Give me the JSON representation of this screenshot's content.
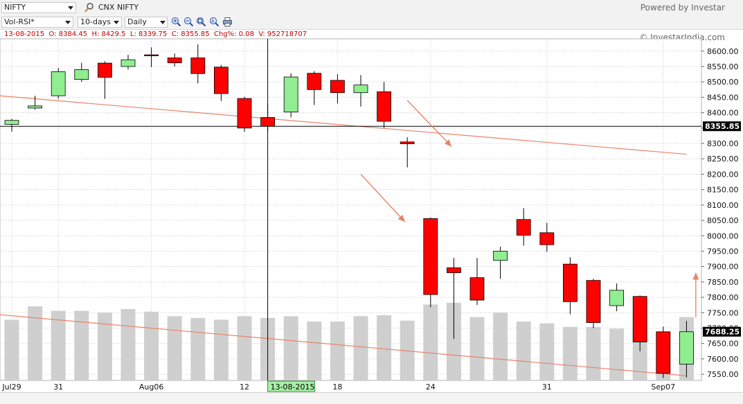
{
  "toolbar": {
    "symbol": "NIFTY",
    "symbol_name": "CNX NIFTY",
    "indicator": "Vol-RSI*",
    "period": "10-days",
    "interval": "Daily",
    "powered_by": "Powered by Investar",
    "copyright": "© InvestarIndia.com"
  },
  "ohlc_readout": {
    "date": "13-08-2015",
    "open": "O: 8384.45",
    "high": "H: 8429.5",
    "low": "L: 8339.75",
    "close": "C: 8355.85",
    "change": "Chg%: 0.08",
    "volume": "V: 952718707"
  },
  "colors": {
    "up": "#90ee90",
    "down": "#ff0000",
    "volume": "#cfcfcf",
    "trendline": "#e8826a",
    "grid": "#c8c8c8",
    "label_box": "#000000"
  },
  "chart_data": {
    "type": "candlestick",
    "title": "",
    "ylim": [
      7530,
      8640
    ],
    "yticks": [
      7550,
      7600,
      7650,
      7700,
      7750,
      7800,
      7850,
      7900,
      7950,
      8000,
      8050,
      8100,
      8150,
      8200,
      8250,
      8300,
      8350,
      8400,
      8450,
      8500,
      8550,
      8600
    ],
    "ytick_labels": [
      "7550.00",
      "7600.00",
      "7650.00",
      "7700.00",
      "7750.00",
      "7800.00",
      "7850.00",
      "7900.00",
      "7950.00",
      "8000.00",
      "8050.00",
      "8100.00",
      "8150.00",
      "8200.00",
      "8250.00",
      "8300.00",
      "8350.00",
      "8400.00",
      "8450.00",
      "8500.00",
      "8550.00",
      "8600.00"
    ],
    "xlabels": [
      {
        "index": 0,
        "text": "Jul29"
      },
      {
        "index": 2,
        "text": "31"
      },
      {
        "index": 6,
        "text": "Aug06"
      },
      {
        "index": 10,
        "text": "12"
      },
      {
        "index": 11,
        "text": "13-08-2015"
      },
      {
        "index": 14,
        "text": "18"
      },
      {
        "index": 18,
        "text": "24"
      },
      {
        "index": 23,
        "text": "31"
      },
      {
        "index": 28,
        "text": "Sep07"
      }
    ],
    "candles": [
      {
        "o": 8362,
        "h": 8380,
        "l": 8338,
        "c": 8375
      },
      {
        "o": 8415,
        "h": 8455,
        "l": 8410,
        "c": 8422
      },
      {
        "o": 8455,
        "h": 8545,
        "l": 8445,
        "c": 8533
      },
      {
        "o": 8508,
        "h": 8562,
        "l": 8500,
        "c": 8540
      },
      {
        "o": 8561,
        "h": 8567,
        "l": 8445,
        "c": 8515
      },
      {
        "o": 8550,
        "h": 8588,
        "l": 8540,
        "c": 8572
      },
      {
        "o": 8588,
        "h": 8612,
        "l": 8548,
        "c": 8586
      },
      {
        "o": 8578,
        "h": 8592,
        "l": 8550,
        "c": 8562
      },
      {
        "o": 8578,
        "h": 8622,
        "l": 8495,
        "c": 8527
      },
      {
        "o": 8548,
        "h": 8555,
        "l": 8438,
        "c": 8462
      },
      {
        "o": 8446,
        "h": 8452,
        "l": 8338,
        "c": 8350
      },
      {
        "o": 8384.45,
        "h": 8429.5,
        "l": 8339.75,
        "c": 8355.85
      },
      {
        "o": 8402,
        "h": 8528,
        "l": 8385,
        "c": 8516
      },
      {
        "o": 8528,
        "h": 8535,
        "l": 8425,
        "c": 8475
      },
      {
        "o": 8505,
        "h": 8525,
        "l": 8430,
        "c": 8465
      },
      {
        "o": 8465,
        "h": 8522,
        "l": 8420,
        "c": 8490
      },
      {
        "o": 8468,
        "h": 8500,
        "l": 8350,
        "c": 8372
      },
      {
        "o": 8305,
        "h": 8320,
        "l": 8222,
        "c": 8299
      },
      {
        "o": 8056,
        "h": 8060,
        "l": 7768,
        "c": 7809
      },
      {
        "o": 7896,
        "h": 7928,
        "l": 7665,
        "c": 7880
      },
      {
        "o": 7864,
        "h": 7928,
        "l": 7775,
        "c": 7791
      },
      {
        "o": 7920,
        "h": 7965,
        "l": 7860,
        "c": 7950
      },
      {
        "o": 8053,
        "h": 8090,
        "l": 7968,
        "c": 8002
      },
      {
        "o": 8010,
        "h": 8042,
        "l": 7948,
        "c": 7971
      },
      {
        "o": 7908,
        "h": 7930,
        "l": 7745,
        "c": 7786
      },
      {
        "o": 7855,
        "h": 7860,
        "l": 7700,
        "c": 7718
      },
      {
        "o": 7773,
        "h": 7845,
        "l": 7755,
        "c": 7823
      },
      {
        "o": 7803,
        "h": 7806,
        "l": 7625,
        "c": 7655
      },
      {
        "o": 7688,
        "h": 7705,
        "l": 7538,
        "c": 7553
      },
      {
        "o": 7583,
        "h": 7723,
        "l": 7540,
        "c": 7688.25
      }
    ],
    "volume_rel": [
      0.68,
      0.83,
      0.78,
      0.78,
      0.76,
      0.8,
      0.77,
      0.72,
      0.7,
      0.68,
      0.72,
      0.7,
      0.72,
      0.66,
      0.66,
      0.72,
      0.73,
      0.67,
      0.85,
      0.87,
      0.71,
      0.76,
      0.66,
      0.64,
      0.6,
      0.6,
      0.58,
      0.6,
      0.55,
      0.71
    ],
    "price_labels": [
      {
        "value": 8355.85,
        "text": "8355.85"
      },
      {
        "value": 7688.25,
        "text": "7688.25"
      }
    ],
    "crosshair_index": 11,
    "trendlines": [
      {
        "from": [
          -1,
          8458
        ],
        "to": [
          29,
          8265
        ]
      },
      {
        "from": [
          -1,
          7747
        ],
        "to": [
          29,
          7545
        ]
      }
    ],
    "arrows": [
      {
        "from": [
          17.0,
          8440
        ],
        "to": [
          18.9,
          8290
        ]
      },
      {
        "from": [
          15.0,
          8200
        ],
        "to": [
          16.9,
          8045
        ]
      },
      {
        "from": [
          29.4,
          7735
        ],
        "to": [
          29.4,
          7880
        ]
      }
    ],
    "legend": "none",
    "grid": true
  }
}
